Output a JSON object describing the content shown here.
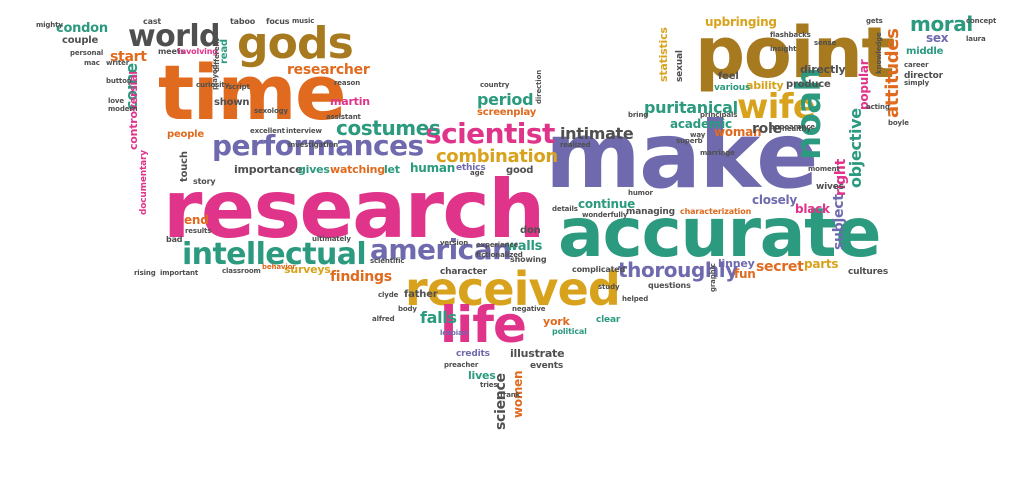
{
  "colors": {
    "orange": "#E06A1E",
    "pink": "#E0338A",
    "purple": "#6F6AAE",
    "teal": "#2B9A7F",
    "gold": "#D8A21C",
    "gray": "#4F4F4F",
    "brown": "#A77A1F",
    "green": "#7AAE3A"
  },
  "words": [
    {
      "text": "research",
      "c": "pink"
    },
    {
      "text": "make",
      "c": "purple"
    },
    {
      "text": "accurate",
      "c": "teal"
    },
    {
      "text": "time",
      "c": "orange"
    },
    {
      "text": "point",
      "c": "brown"
    },
    {
      "text": "received",
      "c": "gold"
    },
    {
      "text": "life",
      "c": "pink"
    },
    {
      "text": "gods",
      "c": "brown"
    },
    {
      "text": "world",
      "c": "gray"
    },
    {
      "text": "performances",
      "c": "purple"
    },
    {
      "text": "intellectual",
      "c": "teal"
    },
    {
      "text": "american",
      "c": "purple"
    },
    {
      "text": "scientist",
      "c": "pink"
    },
    {
      "text": "combination",
      "c": "gold"
    },
    {
      "text": "wife",
      "c": "gold"
    },
    {
      "text": "noah",
      "c": "teal"
    },
    {
      "text": "costumes",
      "c": "teal"
    },
    {
      "text": "thoroughly",
      "c": "purple"
    },
    {
      "text": "moral",
      "c": "teal"
    },
    {
      "text": "upbringing",
      "c": "gold"
    },
    {
      "text": "researcher",
      "c": "orange"
    },
    {
      "text": "period",
      "c": "teal"
    },
    {
      "text": "screenplay",
      "c": "orange"
    },
    {
      "text": "intimate",
      "c": "gray"
    },
    {
      "text": "puritanical",
      "c": "teal"
    },
    {
      "text": "academic",
      "c": "teal"
    },
    {
      "text": "woman",
      "c": "orange"
    },
    {
      "text": "role",
      "c": "gray"
    },
    {
      "text": "falls",
      "c": "teal"
    },
    {
      "text": "findings",
      "c": "orange"
    },
    {
      "text": "surveys",
      "c": "gold"
    },
    {
      "text": "secret",
      "c": "orange"
    },
    {
      "text": "parts",
      "c": "gold"
    },
    {
      "text": "fun",
      "c": "orange"
    },
    {
      "text": "black",
      "c": "pink"
    },
    {
      "text": "closely",
      "c": "purple"
    },
    {
      "text": "continue",
      "c": "teal"
    },
    {
      "text": "managing",
      "c": "gray"
    },
    {
      "text": "characterization",
      "c": "orange"
    },
    {
      "text": "walls",
      "c": "teal"
    },
    {
      "text": "don",
      "c": "gray"
    },
    {
      "text": "showing",
      "c": "gray"
    },
    {
      "text": "human",
      "c": "teal"
    },
    {
      "text": "ethics",
      "c": "purple"
    },
    {
      "text": "good",
      "c": "gray"
    },
    {
      "text": "importance",
      "c": "gray"
    },
    {
      "text": "gives",
      "c": "teal"
    },
    {
      "text": "watching",
      "c": "orange"
    },
    {
      "text": "let",
      "c": "teal"
    },
    {
      "text": "start",
      "c": "orange"
    },
    {
      "text": "condon",
      "c": "teal"
    },
    {
      "text": "couple",
      "c": "gray"
    },
    {
      "text": "come",
      "c": "teal"
    },
    {
      "text": "shown",
      "c": "gray"
    },
    {
      "text": "people",
      "c": "orange"
    },
    {
      "text": "end",
      "c": "orange"
    },
    {
      "text": "sex",
      "c": "purple"
    },
    {
      "text": "middle",
      "c": "teal"
    },
    {
      "text": "ability",
      "c": "gold"
    },
    {
      "text": "produce",
      "c": "gray"
    },
    {
      "text": "directly",
      "c": "gray"
    },
    {
      "text": "martin",
      "c": "pink"
    },
    {
      "text": "york",
      "c": "orange"
    },
    {
      "text": "father",
      "c": "gray"
    },
    {
      "text": "illustrate",
      "c": "gray"
    },
    {
      "text": "lives",
      "c": "teal"
    },
    {
      "text": "events",
      "c": "gray"
    },
    {
      "text": "science",
      "c": "gray"
    },
    {
      "text": "women",
      "c": "orange"
    },
    {
      "text": "linney",
      "c": "purple"
    },
    {
      "text": "questions",
      "c": "gray"
    },
    {
      "text": "complicated",
      "c": "gray"
    },
    {
      "text": "clear",
      "c": "teal"
    },
    {
      "text": "political",
      "c": "teal"
    },
    {
      "text": "credits",
      "c": "purple"
    },
    {
      "text": "character",
      "c": "gray"
    },
    {
      "text": "attitudes",
      "c": "orange"
    },
    {
      "text": "objective",
      "c": "teal"
    },
    {
      "text": "subject",
      "c": "purple"
    },
    {
      "text": "right",
      "c": "pink"
    },
    {
      "text": "popular",
      "c": "pink"
    },
    {
      "text": "controversial",
      "c": "pink"
    },
    {
      "text": "documentary",
      "c": "pink"
    },
    {
      "text": "touch",
      "c": "gray"
    },
    {
      "text": "statistics",
      "c": "gold"
    },
    {
      "text": "sexual",
      "c": "gray"
    },
    {
      "text": "feel",
      "c": "gray"
    },
    {
      "text": "various",
      "c": "teal"
    },
    {
      "text": "director",
      "c": "gray"
    },
    {
      "text": "cultures",
      "c": "gray"
    },
    {
      "text": "wives",
      "c": "gray"
    },
    {
      "text": "cast",
      "c": "gray"
    },
    {
      "text": "taboo",
      "c": "gray"
    },
    {
      "text": "focus",
      "c": "gray"
    },
    {
      "text": "read",
      "c": "teal"
    },
    {
      "text": "meets",
      "c": "gray"
    },
    {
      "text": "involving",
      "c": "pink"
    },
    {
      "text": "story",
      "c": "gray"
    },
    {
      "text": "classroom",
      "c": "gray"
    },
    {
      "text": "important",
      "c": "gray"
    },
    {
      "text": "results",
      "c": "gray"
    },
    {
      "text": "bad",
      "c": "gray"
    },
    {
      "text": "scientific",
      "c": "gray"
    },
    {
      "text": "ultimately",
      "c": "gray"
    },
    {
      "text": "behavior",
      "c": "orange"
    },
    {
      "text": "assistant",
      "c": "gray"
    },
    {
      "text": "interview",
      "c": "gray"
    },
    {
      "text": "excellent",
      "c": "gray"
    },
    {
      "text": "lesbian",
      "c": "purple"
    },
    {
      "text": "body",
      "c": "gray"
    },
    {
      "text": "negative",
      "c": "gray"
    },
    {
      "text": "helped",
      "c": "gray"
    },
    {
      "text": "study",
      "c": "gray"
    },
    {
      "text": "concept",
      "c": "gray"
    },
    {
      "text": "laura",
      "c": "gray"
    },
    {
      "text": "boyle",
      "c": "gray"
    },
    {
      "text": "healthy",
      "c": "gray"
    },
    {
      "text": "acting",
      "c": "gray"
    },
    {
      "text": "career",
      "c": "gray"
    },
    {
      "text": "gets",
      "c": "gray"
    },
    {
      "text": "flashbacks",
      "c": "gray"
    },
    {
      "text": "superb",
      "c": "gray"
    },
    {
      "text": "insight",
      "c": "gray"
    },
    {
      "text": "way",
      "c": "gray"
    },
    {
      "text": "details",
      "c": "gray"
    },
    {
      "text": "wonderfully",
      "c": "gray"
    },
    {
      "text": "fictionalized",
      "c": "gray"
    },
    {
      "text": "experience",
      "c": "gray"
    },
    {
      "text": "sexology",
      "c": "gray"
    },
    {
      "text": "marriage",
      "c": "gray"
    },
    {
      "text": "button",
      "c": "gray"
    },
    {
      "text": "love",
      "c": "gray"
    },
    {
      "text": "modern",
      "c": "gray"
    },
    {
      "text": "writer",
      "c": "gray"
    },
    {
      "text": "personal",
      "c": "gray"
    },
    {
      "text": "script",
      "c": "gray"
    },
    {
      "text": "different",
      "c": "gray"
    },
    {
      "text": "reason",
      "c": "gray"
    },
    {
      "text": "country",
      "c": "gray"
    },
    {
      "text": "direction",
      "c": "gray"
    },
    {
      "text": "preacher",
      "c": "gray"
    },
    {
      "text": "humor",
      "c": "gray"
    },
    {
      "text": "realized",
      "c": "gray"
    },
    {
      "text": "sense",
      "c": "gray"
    },
    {
      "text": "knowledge",
      "c": "gray"
    },
    {
      "text": "simply",
      "c": "gray"
    },
    {
      "text": "version",
      "c": "gray"
    },
    {
      "text": "graphic",
      "c": "gray"
    },
    {
      "text": "moment",
      "c": "gray"
    },
    {
      "text": "appearance",
      "c": "gray"
    },
    {
      "text": "alfred",
      "c": "gray"
    },
    {
      "text": "clyde",
      "c": "gray"
    },
    {
      "text": "rising",
      "c": "gray"
    },
    {
      "text": "music",
      "c": "gray"
    },
    {
      "text": "mac",
      "c": "gray"
    },
    {
      "text": "mighty",
      "c": "gray"
    },
    {
      "text": "frank",
      "c": "gray"
    },
    {
      "text": "played",
      "c": "gray"
    },
    {
      "text": "bring",
      "c": "gray"
    },
    {
      "text": "curiosity",
      "c": "gray"
    },
    {
      "text": "investigation",
      "c": "gray"
    },
    {
      "text": "principals",
      "c": "gray"
    },
    {
      "text": "age",
      "c": "gray"
    },
    {
      "text": "tries",
      "c": "gray"
    }
  ]
}
